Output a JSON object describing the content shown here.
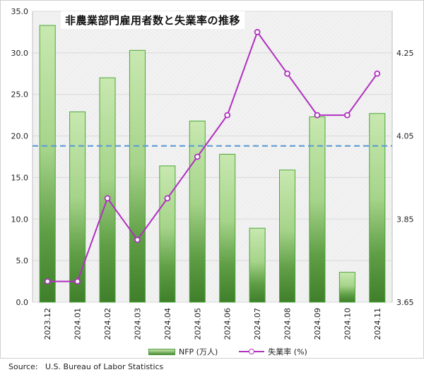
{
  "title": "非農業部門雇用者数と失業率の推移",
  "source": {
    "label": "Source:",
    "text": "U.S. Bureau of Labor Statistics"
  },
  "legend": {
    "bar": "NFP (万人)",
    "line": "失業率 (%)"
  },
  "colors": {
    "bar_top": "#c8e8b0",
    "bar_bottom": "#3f7f2a",
    "bar_border": "#4aa83a",
    "line": "#b030c0",
    "dashed": "#5b9bd5",
    "plot_bg": "#f2f2f2",
    "grid": "#d9d9d9"
  },
  "chart_data": {
    "type": "bar",
    "categories": [
      "2023.12",
      "2024.01",
      "2024.02",
      "2024.03",
      "2024.04",
      "2024.05",
      "2024.06",
      "2024.07",
      "2024.08",
      "2024.09",
      "2024.10",
      "2024.11"
    ],
    "series": [
      {
        "name": "NFP (万人)",
        "type": "bar",
        "axis": "left",
        "values": [
          33.3,
          22.9,
          27.0,
          30.3,
          16.4,
          21.8,
          17.8,
          8.9,
          15.9,
          22.3,
          3.6,
          22.7
        ]
      },
      {
        "name": "失業率 (%)",
        "type": "line",
        "axis": "right",
        "values": [
          3.7,
          3.7,
          3.9,
          3.8,
          3.9,
          4.0,
          4.1,
          4.3,
          4.2,
          4.1,
          4.1,
          4.2
        ]
      }
    ],
    "reference_line": {
      "axis": "left",
      "value": 18.8,
      "style": "dashed"
    },
    "y_left": {
      "ylim": [
        0,
        35
      ],
      "ticks": [
        "0.0",
        "5.0",
        "10.0",
        "15.0",
        "20.0",
        "25.0",
        "30.0",
        "35.0"
      ]
    },
    "y_right": {
      "ylim": [
        3.65,
        4.35
      ],
      "ticks": [
        "3.65",
        "3.85",
        "4.05",
        "4.25"
      ]
    },
    "grid": true,
    "legend_position": "bottom"
  }
}
